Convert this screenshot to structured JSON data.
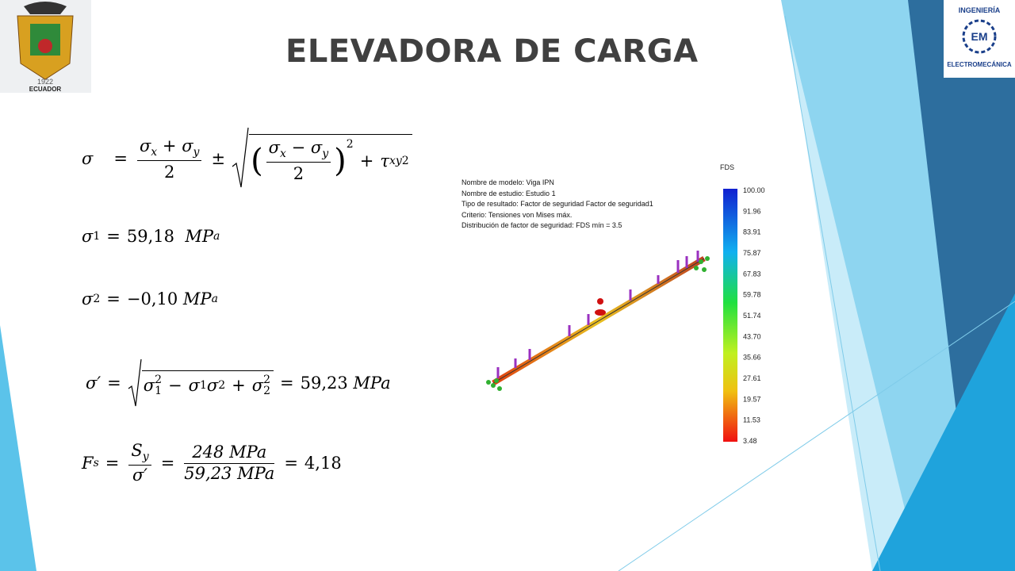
{
  "header": {
    "title": "ELEVADORA DE CARGA"
  },
  "logos": {
    "left": {
      "year": "1922",
      "country": "ECUADOR"
    },
    "right": {
      "top": "INGENIERÍA",
      "initials": "EM",
      "bottom": "ELECTROMECÁNICA"
    }
  },
  "equations": [
    {
      "parts": [
        "σ",
        "=",
        "σ",
        "x",
        "+",
        "σ",
        "y",
        "2",
        "±",
        "(",
        "σ",
        "x",
        "−",
        "σ",
        "y",
        "2",
        ")",
        "2",
        "+",
        "τ",
        "xy",
        "2"
      ]
    },
    {
      "parts": [
        "σ",
        "1",
        "=",
        "59,18",
        "MP",
        "a"
      ]
    },
    {
      "parts": [
        "σ",
        "2",
        "=",
        "−0,10",
        "MP",
        "a"
      ]
    },
    {
      "parts": [
        "σ′",
        "=",
        "σ",
        "1",
        "2",
        "−",
        "σ",
        "1",
        "σ",
        "2",
        "+",
        "σ",
        "2",
        "2",
        "=",
        "59,23",
        "MPa"
      ]
    },
    {
      "parts": [
        "F",
        "s",
        "=",
        "S",
        "y",
        "σ′",
        "=",
        "248 MPa",
        "59,23 MPa",
        "=",
        "4,18"
      ]
    }
  ],
  "simulation": {
    "info": [
      "Nombre de modelo: Viga IPN",
      "Nombre de estudio: Estudio 1",
      "Tipo de resultado: Factor de seguridad Factor de seguridad1",
      "Criterio: Tensiones von Mises máx.",
      "Distribución de factor de seguridad: FDS mín = 3.5"
    ],
    "legend": {
      "title": "FDS",
      "ticks": [
        "100.00",
        "91.96",
        "83.91",
        "75.87",
        "67.83",
        "59.78",
        "51.74",
        "43.70",
        "35.66",
        "27.61",
        "19.57",
        "11.53",
        "3.48"
      ]
    }
  }
}
